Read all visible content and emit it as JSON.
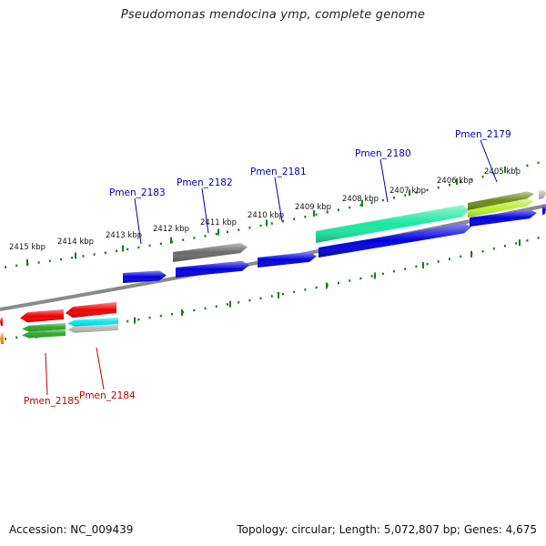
{
  "title": "Pseudomonas mendocina ymp, complete genome",
  "accession": "Accession: NC_009439",
  "summary": "Topology: circular; Length: 5,072,807 bp; Genes: 4,675",
  "colors": {
    "tick": "#1a7a1a",
    "backbone": "#8a8a8a",
    "forward_label": "#0000c0",
    "reverse_label": "#c00000",
    "blue": "#0000e0",
    "red": "#f00000",
    "gray": "#6a6a6a",
    "teal": "#19e8a0",
    "olive": "#6e8a1a",
    "lime": "#b8f030",
    "green": "#2aa82a",
    "cyan": "#00e8f0",
    "silver": "#b8b8b8",
    "orange": "#ff8c00"
  },
  "kbp_labels": [
    "2405 kbp",
    "2406 kbp",
    "2407 kbp",
    "2408 kbp",
    "2409 kbp",
    "2410 kbp",
    "2411 kbp",
    "2412 kbp",
    "2413 kbp",
    "2414 kbp",
    "2415 kbp"
  ],
  "forward_genes": [
    "Pmen_2179",
    "Pmen_2180",
    "Pmen_2181",
    "Pmen_2182",
    "Pmen_2183"
  ],
  "reverse_genes": [
    "Pmen_2184",
    "Pmen_2185"
  ]
}
